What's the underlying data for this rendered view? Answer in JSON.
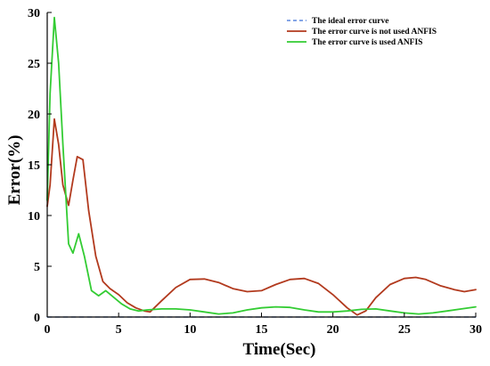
{
  "chart_data": {
    "type": "line",
    "title": "",
    "xlabel": "Time(Sec)",
    "ylabel": "Error(%)",
    "xlim": [
      0,
      30
    ],
    "ylim": [
      0,
      30
    ],
    "xticks": [
      "0",
      "5",
      "10",
      "15",
      "20",
      "25",
      "30"
    ],
    "yticks": [
      "0",
      "5",
      "10",
      "15",
      "20",
      "25",
      "30"
    ],
    "grid": false,
    "legend_position": "top-right",
    "series": [
      {
        "name": "The ideal error curve",
        "color": "#3a6fd8",
        "dash": "dashed",
        "x": [
          0,
          30
        ],
        "y": [
          0,
          0
        ]
      },
      {
        "name": "The error curve is not used ANFIS",
        "color": "#b23a1e",
        "dash": "solid",
        "x": [
          0,
          0.2,
          0.5,
          0.8,
          1.1,
          1.5,
          1.8,
          2.1,
          2.5,
          2.9,
          3.4,
          3.9,
          4.4,
          5.0,
          5.6,
          6.2,
          6.8,
          7.2,
          8.0,
          9.0,
          10.0,
          11.0,
          12.0,
          13.0,
          14.0,
          15.0,
          16.0,
          17.0,
          18.0,
          19.0,
          20.0,
          21.0,
          21.7,
          22.3,
          23.0,
          24.0,
          25.0,
          25.8,
          26.5,
          27.5,
          28.5,
          29.2,
          30.0
        ],
        "y": [
          10.9,
          13.0,
          19.5,
          17.0,
          13.0,
          11.0,
          13.5,
          15.8,
          15.5,
          10.5,
          6.0,
          3.5,
          2.8,
          2.2,
          1.4,
          0.9,
          0.6,
          0.5,
          1.6,
          2.9,
          3.7,
          3.75,
          3.4,
          2.8,
          2.5,
          2.6,
          3.2,
          3.7,
          3.8,
          3.3,
          2.2,
          0.9,
          0.2,
          0.6,
          1.9,
          3.2,
          3.8,
          3.9,
          3.7,
          3.1,
          2.7,
          2.5,
          2.7
        ]
      },
      {
        "name": "The error curve is used ANFIS",
        "color": "#33cc33",
        "dash": "solid",
        "x": [
          0,
          0.2,
          0.5,
          0.8,
          1.1,
          1.5,
          1.8,
          2.2,
          2.6,
          3.1,
          3.6,
          4.1,
          4.6,
          5.2,
          5.8,
          6.4,
          7.0,
          8.0,
          9.0,
          10.0,
          11.0,
          12.0,
          13.0,
          14.0,
          15.0,
          16.0,
          17.0,
          18.0,
          19.0,
          20.0,
          21.0,
          22.0,
          23.0,
          24.0,
          25.0,
          26.0,
          27.0,
          28.0,
          29.0,
          30.0
        ],
        "y": [
          11.5,
          22.0,
          29.5,
          25.0,
          17.0,
          7.2,
          6.3,
          8.2,
          6.0,
          2.6,
          2.1,
          2.6,
          2.0,
          1.3,
          0.8,
          0.6,
          0.7,
          0.8,
          0.8,
          0.7,
          0.5,
          0.3,
          0.4,
          0.7,
          0.9,
          1.0,
          0.95,
          0.7,
          0.5,
          0.5,
          0.6,
          0.75,
          0.8,
          0.6,
          0.4,
          0.3,
          0.4,
          0.6,
          0.8,
          1.0
        ]
      }
    ]
  }
}
